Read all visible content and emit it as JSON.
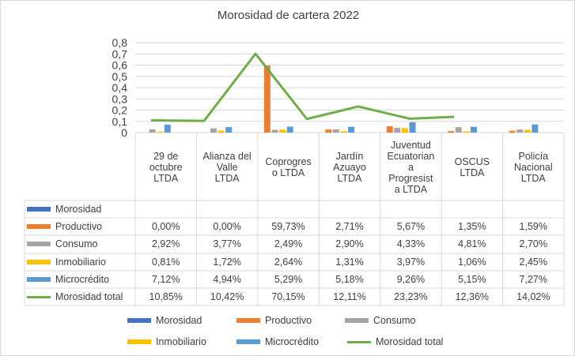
{
  "chart_data": {
    "type": "bar",
    "title": "Morosidad de cartera 2022",
    "categories": [
      "29 de octubre LTDA",
      "Alianza del Valle LTDA",
      "Coprogreso LTDA",
      "Jardín Azuayo LTDA",
      "Juventud Ecuatoriana Progresista LTDA",
      "OSCUS LTDA",
      "Policía Nacional LTDA"
    ],
    "category_labels": [
      "29 de\noctubre\nLTDA",
      "Alianza del\nValle\nLTDA",
      "Coprogres\no LTDA",
      "Jardín\nAzuayo\nLTDA",
      "Juventud\nEcuatorian\na\nProgresist\na LTDA",
      "OSCUS\nLTDA",
      "Policía\nNacional\nLTDA"
    ],
    "yticks": [
      "0",
      "0,1",
      "0,2",
      "0,3",
      "0,4",
      "0,5",
      "0,6",
      "0,7",
      "0,8"
    ],
    "ylim": [
      0,
      0.8
    ],
    "grid": true,
    "legend_position": "bottom",
    "series": [
      {
        "name": "Morosidad",
        "type": "bar",
        "color": "#4472c4",
        "values": [
          null,
          null,
          null,
          null,
          null,
          null,
          null
        ],
        "labels": [
          "",
          "",
          "",
          "",
          "",
          "",
          ""
        ]
      },
      {
        "name": "Productivo",
        "type": "bar",
        "color": "#ed7d31",
        "values": [
          0,
          0,
          0.5973,
          0.0271,
          0.0567,
          0.0135,
          0.0159
        ],
        "labels": [
          "0,00%",
          "0,00%",
          "59,73%",
          "2,71%",
          "5,67%",
          "1,35%",
          "1,59%"
        ]
      },
      {
        "name": "Consumo",
        "type": "bar",
        "color": "#a5a5a5",
        "values": [
          0.0292,
          0.0377,
          0.0249,
          0.029,
          0.0433,
          0.0481,
          0.027
        ],
        "labels": [
          "2,92%",
          "3,77%",
          "2,49%",
          "2,90%",
          "4,33%",
          "4,81%",
          "2,70%"
        ]
      },
      {
        "name": "Inmobiliario",
        "type": "bar",
        "color": "#ffc000",
        "values": [
          0.0081,
          0.0172,
          0.0264,
          0.0131,
          0.0397,
          0.0106,
          0.0245
        ],
        "labels": [
          "0,81%",
          "1,72%",
          "2,64%",
          "1,31%",
          "3,97%",
          "1,06%",
          "2,45%"
        ]
      },
      {
        "name": "Microcrédito",
        "type": "bar",
        "color": "#5b9bd5",
        "values": [
          0.0712,
          0.0494,
          0.0529,
          0.0518,
          0.0926,
          0.0515,
          0.0727
        ],
        "labels": [
          "7,12%",
          "4,94%",
          "5,29%",
          "5,18%",
          "9,26%",
          "5,15%",
          "7,27%"
        ]
      },
      {
        "name": "Morosidad total",
        "type": "line",
        "color": "#70ad47",
        "values": [
          0.1085,
          0.1042,
          0.7015,
          0.1211,
          0.2323,
          0.1236,
          0.1402
        ],
        "labels": [
          "10,85%",
          "10,42%",
          "70,15%",
          "12,11%",
          "23,23%",
          "12,36%",
          "14,02%"
        ]
      }
    ]
  }
}
